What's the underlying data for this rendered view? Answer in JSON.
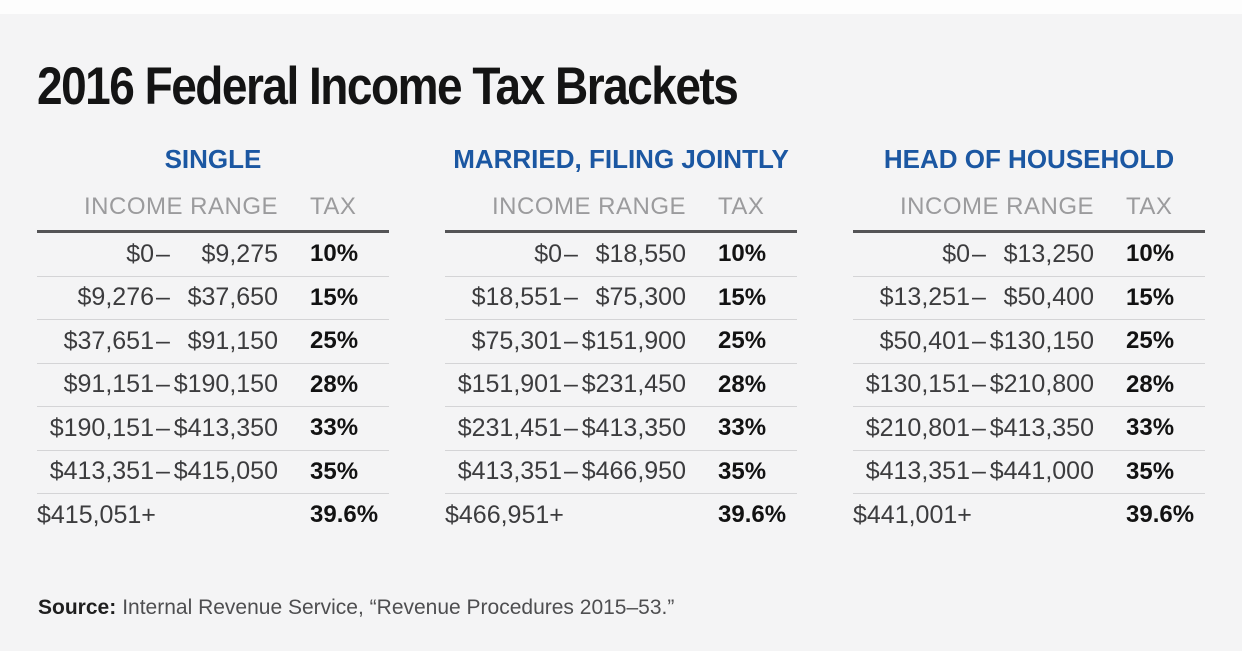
{
  "title": "2016 Federal Income Tax Brackets",
  "chart_data": {
    "type": "table",
    "title": "2016 Federal Income Tax Brackets",
    "column_headers": {
      "income": "INCOME RANGE",
      "tax": "TAX"
    },
    "tables": [
      {
        "name": "SINGLE",
        "rows": [
          {
            "lo": "$0",
            "sep": "–",
            "hi": "$9,275",
            "tax": "10%"
          },
          {
            "lo": "$9,276",
            "sep": "–",
            "hi": "$37,650",
            "tax": "15%"
          },
          {
            "lo": "$37,651",
            "sep": "–",
            "hi": "$91,150",
            "tax": "25%"
          },
          {
            "lo": "$91,151",
            "sep": "–",
            "hi": "$190,150",
            "tax": "28%"
          },
          {
            "lo": "$190,151",
            "sep": "–",
            "hi": "$413,350",
            "tax": "33%"
          },
          {
            "lo": "$413,351",
            "sep": "–",
            "hi": "$415,050",
            "tax": "35%"
          },
          {
            "lo": "$415,051+",
            "sep": "",
            "hi": "",
            "tax": "39.6%"
          }
        ]
      },
      {
        "name": "MARRIED, FILING JOINTLY",
        "rows": [
          {
            "lo": "$0",
            "sep": "–",
            "hi": "$18,550",
            "tax": "10%"
          },
          {
            "lo": "$18,551",
            "sep": "–",
            "hi": "$75,300",
            "tax": "15%"
          },
          {
            "lo": "$75,301",
            "sep": "–",
            "hi": "$151,900",
            "tax": "25%"
          },
          {
            "lo": "$151,901",
            "sep": "–",
            "hi": "$231,450",
            "tax": "28%"
          },
          {
            "lo": "$231,451",
            "sep": "–",
            "hi": "$413,350",
            "tax": "33%"
          },
          {
            "lo": "$413,351",
            "sep": "–",
            "hi": "$466,950",
            "tax": "35%"
          },
          {
            "lo": "$466,951+",
            "sep": "",
            "hi": "",
            "tax": "39.6%"
          }
        ]
      },
      {
        "name": "HEAD OF HOUSEHOLD",
        "rows": [
          {
            "lo": "$0",
            "sep": "–",
            "hi": "$13,250",
            "tax": "10%"
          },
          {
            "lo": "$13,251",
            "sep": "–",
            "hi": "$50,400",
            "tax": "15%"
          },
          {
            "lo": "$50,401",
            "sep": "–",
            "hi": "$130,150",
            "tax": "25%"
          },
          {
            "lo": "$130,151",
            "sep": "–",
            "hi": "$210,800",
            "tax": "28%"
          },
          {
            "lo": "$210,801",
            "sep": "–",
            "hi": "$413,350",
            "tax": "33%"
          },
          {
            "lo": "$413,351",
            "sep": "–",
            "hi": "$441,000",
            "tax": "35%"
          },
          {
            "lo": "$441,001+",
            "sep": "",
            "hi": "",
            "tax": "39.6%"
          }
        ]
      }
    ]
  },
  "source": {
    "label": "Source:",
    "text": "Internal Revenue Service, “Revenue Procedures 2015–53.”"
  },
  "colors": {
    "background": "#f4f4f5",
    "heading_blue": "#1b57a2",
    "column_header_gray": "#9b9b9d",
    "rule_dark": "#545456",
    "divider_light": "#d4d4d6",
    "value_text": "#3c3c3e",
    "tax_text": "#121212",
    "title_text": "#141414"
  }
}
